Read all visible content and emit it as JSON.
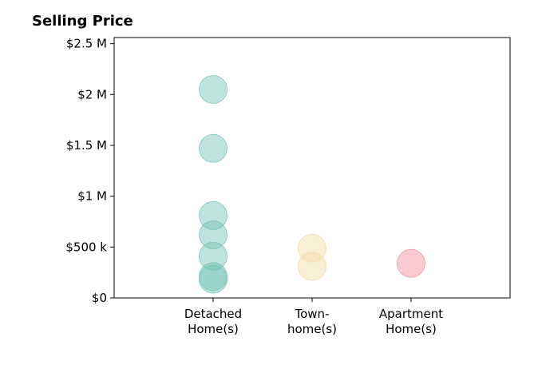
{
  "chart_data": {
    "type": "scatter",
    "title": "Selling Price",
    "xlabel": "",
    "ylabel": "",
    "categories": [
      {
        "lines": [
          "Detached",
          "Home(s)"
        ]
      },
      {
        "lines": [
          "Town-",
          "home(s)"
        ]
      },
      {
        "lines": [
          "Apartment",
          "Home(s)"
        ]
      }
    ],
    "xlim": [
      0,
      4
    ],
    "ylim": [
      0,
      2560000
    ],
    "yticks": [
      {
        "value": 0,
        "label": "$0"
      },
      {
        "value": 500000,
        "label": "$500 k"
      },
      {
        "value": 1000000,
        "label": "$1 M"
      },
      {
        "value": 1500000,
        "label": "$1.5 M"
      },
      {
        "value": 2000000,
        "label": "$2 M"
      },
      {
        "value": 2500000,
        "label": "$2.5 M"
      }
    ],
    "grid": false,
    "series": [
      {
        "category": 1,
        "color": "#70c1b3",
        "values": [
          2050000,
          1470000,
          810000,
          620000,
          410000,
          210000,
          185000
        ]
      },
      {
        "category": 2,
        "color": "#f2d9a3",
        "values": [
          490000,
          310000
        ]
      },
      {
        "category": 3,
        "color": "#f28b96",
        "values": [
          340000
        ]
      }
    ]
  }
}
